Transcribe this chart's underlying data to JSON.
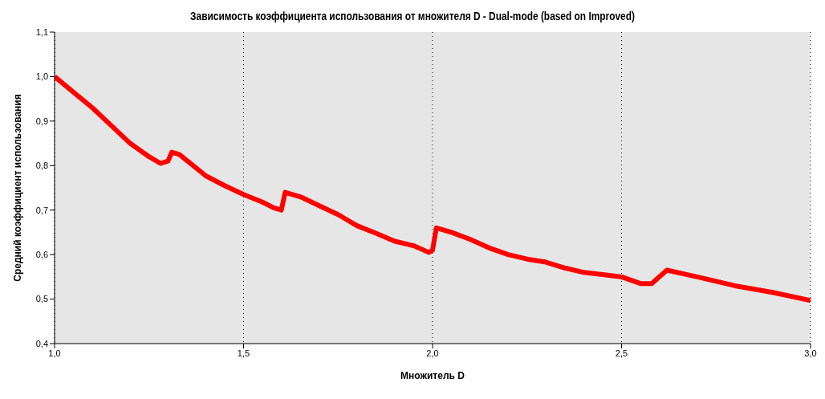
{
  "chart_data": {
    "type": "line",
    "title": "Зависимость коэффициента использования от множителя D - Dual-mode (based on Improved)",
    "xlabel": "Множитель D",
    "ylabel": "Средний коэффициент использования",
    "x": [
      1.0,
      1.05,
      1.1,
      1.15,
      1.2,
      1.25,
      1.28,
      1.3,
      1.31,
      1.33,
      1.4,
      1.45,
      1.5,
      1.55,
      1.58,
      1.6,
      1.61,
      1.65,
      1.7,
      1.75,
      1.8,
      1.85,
      1.9,
      1.95,
      1.99,
      2.0,
      2.01,
      2.05,
      2.1,
      2.15,
      2.2,
      2.25,
      2.3,
      2.35,
      2.4,
      2.45,
      2.5,
      2.55,
      2.58,
      2.6,
      2.62,
      2.7,
      2.8,
      2.9,
      3.0
    ],
    "series": [
      {
        "color": "#ff0000",
        "values": [
          1.0,
          0.965,
          0.93,
          0.89,
          0.85,
          0.82,
          0.805,
          0.81,
          0.83,
          0.825,
          0.777,
          0.755,
          0.735,
          0.718,
          0.705,
          0.7,
          0.74,
          0.73,
          0.71,
          0.69,
          0.665,
          0.648,
          0.63,
          0.62,
          0.605,
          0.61,
          0.66,
          0.65,
          0.634,
          0.615,
          0.6,
          0.59,
          0.583,
          0.57,
          0.56,
          0.555,
          0.55,
          0.535,
          0.535,
          0.55,
          0.565,
          0.55,
          0.53,
          0.515,
          0.497
        ]
      }
    ],
    "xlim": [
      1.0,
      3.0
    ],
    "xticks": [
      {
        "value": 1.0,
        "label": "1,0"
      },
      {
        "value": 1.5,
        "label": "1,5"
      },
      {
        "value": 2.0,
        "label": "2,0"
      },
      {
        "value": 2.5,
        "label": "2,5"
      },
      {
        "value": 3.0,
        "label": "3,0"
      }
    ],
    "ylim": [
      0.4,
      1.1
    ],
    "yticks": [
      {
        "value": 0.4,
        "label": "0,4"
      },
      {
        "value": 0.5,
        "label": "0,5"
      },
      {
        "value": 0.6,
        "label": "0,6"
      },
      {
        "value": 0.7,
        "label": "0,7"
      },
      {
        "value": 0.8,
        "label": "0,8"
      },
      {
        "value": 0.9,
        "label": "0,9"
      },
      {
        "value": 1.0,
        "label": "1,0"
      },
      {
        "value": 1.1,
        "label": "1,1"
      }
    ],
    "grid": "x",
    "legend": false,
    "marker": "none",
    "line_style": "solid"
  }
}
